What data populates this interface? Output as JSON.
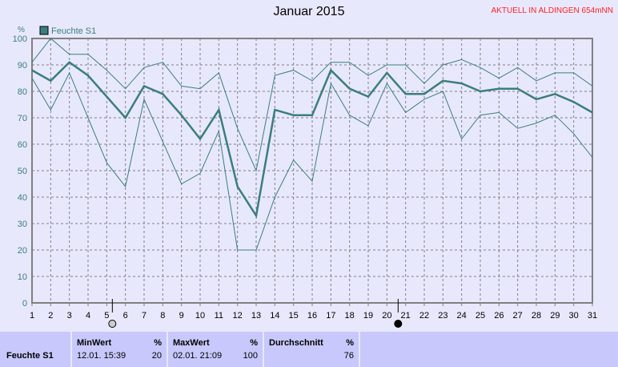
{
  "chart_data": {
    "type": "line",
    "title": "Januar 2015",
    "ylabel": "%",
    "ylim": [
      0,
      100
    ],
    "yticks": [
      0,
      10,
      20,
      30,
      40,
      50,
      60,
      70,
      80,
      90,
      100
    ],
    "x": [
      1,
      2,
      3,
      4,
      5,
      6,
      7,
      8,
      9,
      10,
      11,
      12,
      13,
      14,
      15,
      16,
      17,
      18,
      19,
      20,
      21,
      22,
      23,
      24,
      25,
      26,
      27,
      28,
      29,
      30,
      31
    ],
    "grid": true,
    "legend": "top-left",
    "legend_label": "Feuchte S1",
    "color": "#3a7e7e",
    "series": [
      {
        "role": "max",
        "values": [
          91,
          100,
          94,
          94,
          88,
          81,
          89,
          91,
          82,
          81,
          87,
          66,
          50,
          86,
          88,
          84,
          91,
          91,
          86,
          90,
          90,
          83,
          90,
          92,
          89,
          85,
          89,
          84,
          87,
          87,
          82
        ]
      },
      {
        "role": "avg",
        "values": [
          88,
          84,
          91,
          86,
          78,
          70,
          82,
          79,
          71,
          62,
          73,
          44,
          33,
          73,
          71,
          71,
          88,
          81,
          78,
          87,
          79,
          79,
          84,
          83,
          80,
          81,
          81,
          77,
          79,
          76,
          72
        ]
      },
      {
        "role": "min",
        "values": [
          85,
          73,
          87,
          70,
          53,
          44,
          77,
          61,
          45,
          49,
          65,
          20,
          20,
          40,
          54,
          46,
          83,
          71,
          67,
          83,
          72,
          77,
          80,
          62,
          71,
          72,
          66,
          68,
          71,
          64,
          55
        ]
      }
    ],
    "moon_markers": [
      {
        "day": 5.3,
        "phase": "full-moon-icon"
      },
      {
        "day": 20.6,
        "phase": "new-moon-icon"
      }
    ]
  },
  "header": {
    "notice": "AKTUELL IN ALDINGEN 654mNN"
  },
  "stats": {
    "row_label": "Feuchte S1",
    "min": {
      "label": "MinWert",
      "unit": "%",
      "time": "12.01.  15:39",
      "value": "20"
    },
    "max": {
      "label": "MaxWert",
      "unit": "%",
      "time": "02.01.  21:09",
      "value": "100"
    },
    "avg": {
      "label": "Durchschnitt",
      "unit": "%",
      "value": "76"
    }
  }
}
